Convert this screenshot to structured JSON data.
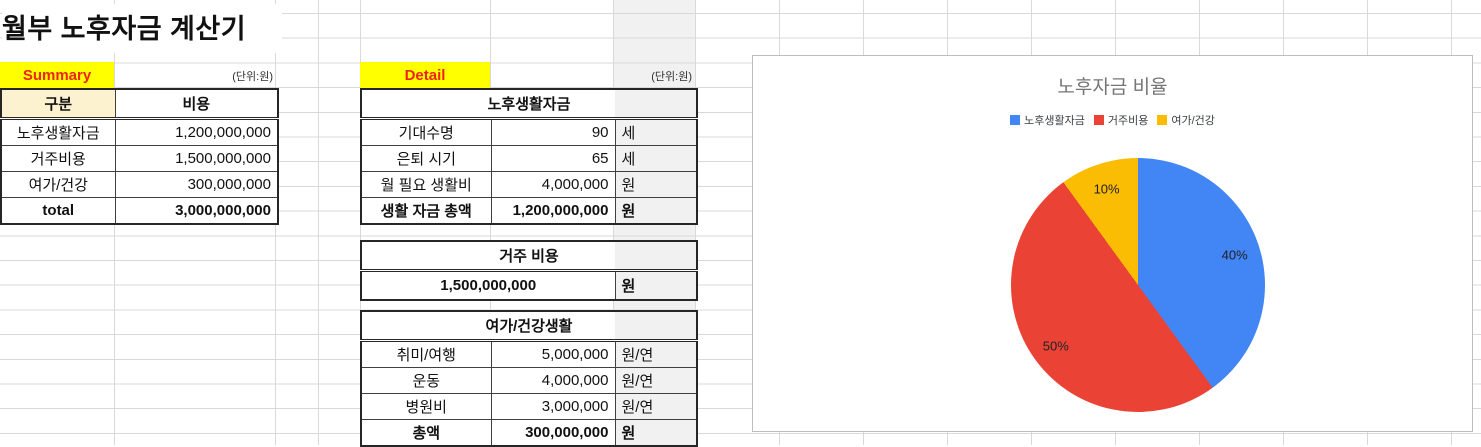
{
  "title": "월부 노후자금 계산기",
  "summary": {
    "tag": "Summary",
    "unit_note": "(단위:원)",
    "table": {
      "headers": [
        "구분",
        "비용"
      ],
      "rows": [
        {
          "label": "노후생활자금",
          "value": "1,200,000,000"
        },
        {
          "label": "거주비용",
          "value": "1,500,000,000"
        },
        {
          "label": "여가/건강",
          "value": "300,000,000"
        },
        {
          "label": "total",
          "value": "3,000,000,000"
        }
      ]
    }
  },
  "detail": {
    "tag": "Detail",
    "unit_note": "(단위:원)",
    "life": {
      "title": "노후생활자금",
      "rows": [
        {
          "label": "기대수명",
          "value": "90",
          "unit": "세"
        },
        {
          "label": "은퇴 시기",
          "value": "65",
          "unit": "세"
        },
        {
          "label": "월 필요 생활비",
          "value": "4,000,000",
          "unit": "원"
        },
        {
          "label": "생활 자금 총액",
          "value": "1,200,000,000",
          "unit": "원"
        }
      ]
    },
    "housing": {
      "title": "거주 비용",
      "value": "1,500,000,000",
      "unit": "원"
    },
    "leisure": {
      "title": "여가/건강생활",
      "rows": [
        {
          "label": "취미/여행",
          "value": "5,000,000",
          "unit": "원/연"
        },
        {
          "label": "운동",
          "value": "4,000,000",
          "unit": "원/연"
        },
        {
          "label": "병원비",
          "value": "3,000,000",
          "unit": "원/연"
        },
        {
          "label": "총액",
          "value": "300,000,000",
          "unit": "원"
        }
      ]
    }
  },
  "chart_data": {
    "type": "pie",
    "title": "노후자금 비율",
    "legend_position": "top",
    "slices": [
      {
        "label": "노후생활자금",
        "value": 40,
        "pct_label": "40%",
        "color": "#4285F4"
      },
      {
        "label": "거주비용",
        "value": 50,
        "pct_label": "50%",
        "color": "#EA4335"
      },
      {
        "label": "여가/건강",
        "value": 10,
        "pct_label": "10%",
        "color": "#FBBC04"
      }
    ]
  }
}
